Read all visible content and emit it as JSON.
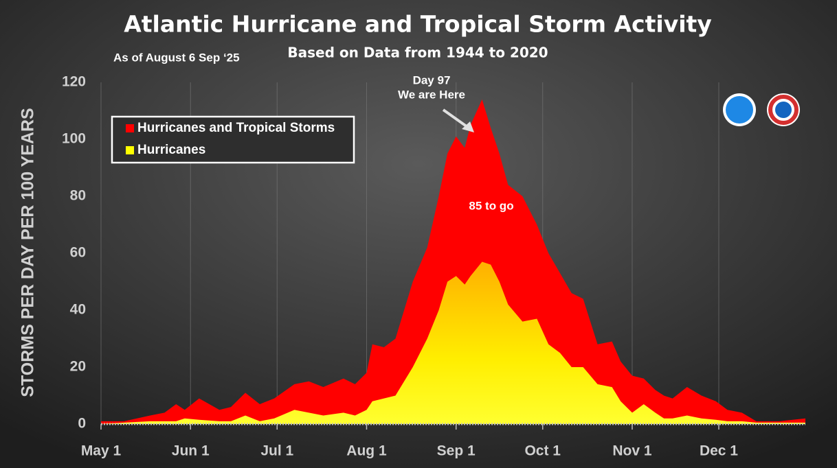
{
  "chart_data": {
    "type": "area",
    "title": "Atlantic Hurricane and Tropical Storm Activity",
    "subtitle": "Based on Data from 1944 to 2020",
    "note": "As of August 6 Sep ‘25",
    "ylabel": "STORMS PER DAY PER 100 YEARS",
    "annotations": [
      "Day 97",
      "We are Here",
      "85 to go"
    ],
    "legend": "upper left",
    "grid": true,
    "x": [
      0,
      8,
      17,
      22,
      26,
      29,
      34,
      41,
      45,
      50,
      55,
      60,
      67,
      72,
      77,
      84,
      88,
      92,
      94,
      98,
      102,
      108,
      113,
      117,
      120,
      123,
      126,
      128,
      132,
      135,
      138,
      141,
      146,
      151,
      155,
      159,
      163,
      167,
      172,
      177,
      180,
      184,
      188,
      192,
      195,
      198,
      203,
      208,
      213,
      217,
      222,
      227,
      235,
      244
    ],
    "series": [
      {
        "name": "Hurricanes and Tropical Storms",
        "color": "#ff0000",
        "values": [
          1,
          1,
          3,
          4,
          7,
          5,
          9,
          5,
          6,
          11,
          7,
          9,
          14,
          15,
          13,
          16,
          14,
          18,
          28,
          27,
          30,
          50,
          62,
          80,
          95,
          101,
          97,
          105,
          114,
          104,
          95,
          84,
          80,
          70,
          60,
          53,
          46,
          44,
          28,
          29,
          22,
          17,
          16,
          12,
          10,
          9,
          13,
          10,
          8,
          5,
          4,
          1,
          1,
          2
        ]
      },
      {
        "name": "Hurricanes",
        "color": "#ffff00",
        "values": [
          0,
          0.5,
          1,
          1,
          1,
          2,
          1.5,
          1,
          1,
          3,
          1,
          2,
          5,
          4,
          3,
          4,
          3,
          5,
          8,
          9,
          10,
          20,
          30,
          40,
          50,
          52,
          49,
          52,
          57,
          56,
          50,
          42,
          36,
          37,
          28,
          25,
          20,
          20,
          14,
          13,
          8,
          4,
          7,
          4,
          2,
          2,
          3,
          2,
          1.5,
          1,
          1,
          0.5,
          0.5,
          0.5
        ]
      }
    ],
    "xlim": [
      0,
      244
    ],
    "xticks": [
      {
        "value": 0,
        "label": "May 1"
      },
      {
        "value": 31,
        "label": "Jun 1"
      },
      {
        "value": 61,
        "label": "Jul 1"
      },
      {
        "value": 92,
        "label": "Aug 1"
      },
      {
        "value": 123,
        "label": "Sep 1"
      },
      {
        "value": 153,
        "label": "Oct 1"
      },
      {
        "value": 184,
        "label": "Nov 1"
      },
      {
        "value": 214,
        "label": "Dec 1"
      }
    ],
    "ylim": [
      0,
      120
    ],
    "yticks": [
      0,
      20,
      40,
      60,
      80,
      100,
      120
    ]
  }
}
